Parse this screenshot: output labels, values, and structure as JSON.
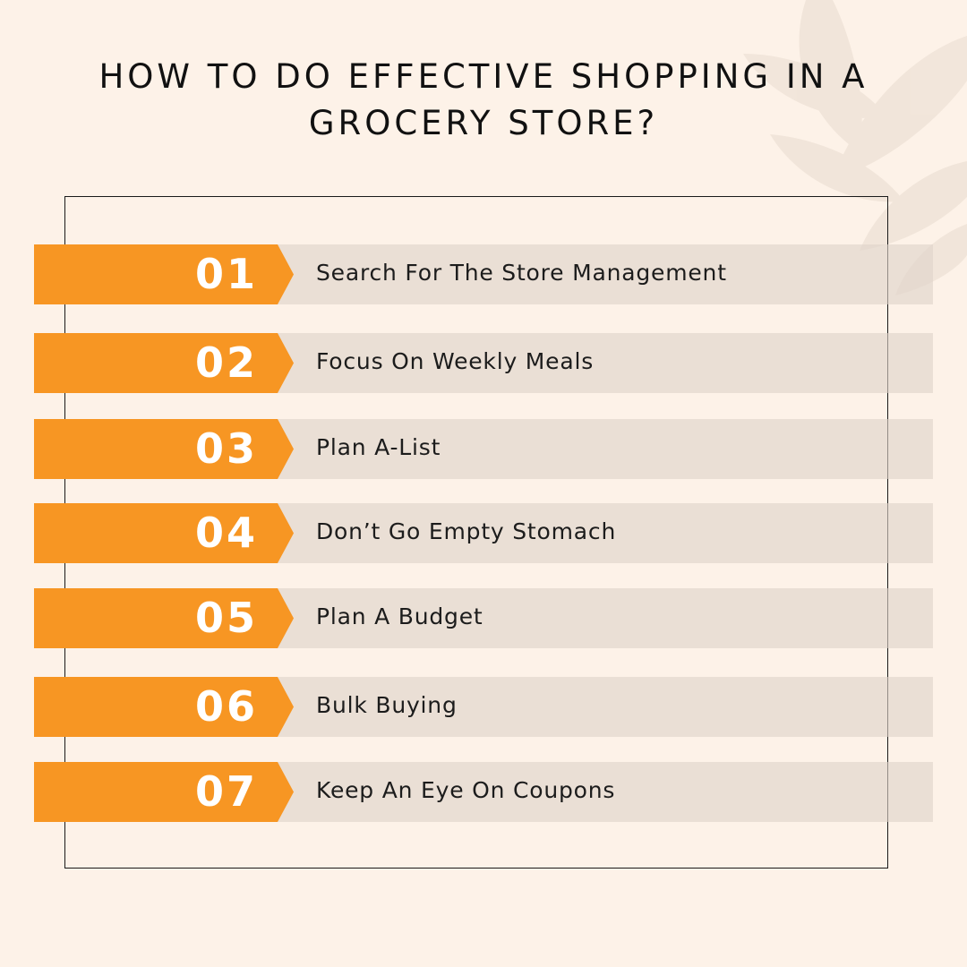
{
  "title": "HOW TO DO EFFECTIVE SHOPPING IN A GROCERY STORE?",
  "colors": {
    "background": "#fdf2e8",
    "accent": "#f79623",
    "bar": "#e7ddd5",
    "text": "#111111"
  },
  "steps": [
    {
      "number": "01",
      "label": "Search For The Store Management"
    },
    {
      "number": "02",
      "label": "Focus On Weekly Meals"
    },
    {
      "number": "03",
      "label": "Plan A-List"
    },
    {
      "number": "04",
      "label": "Don’t Go Empty Stomach"
    },
    {
      "number": "05",
      "label": "Plan A Budget"
    },
    {
      "number": "06",
      "label": "Bulk Buying"
    },
    {
      "number": "07",
      "label": "Keep An Eye On Coupons"
    }
  ]
}
